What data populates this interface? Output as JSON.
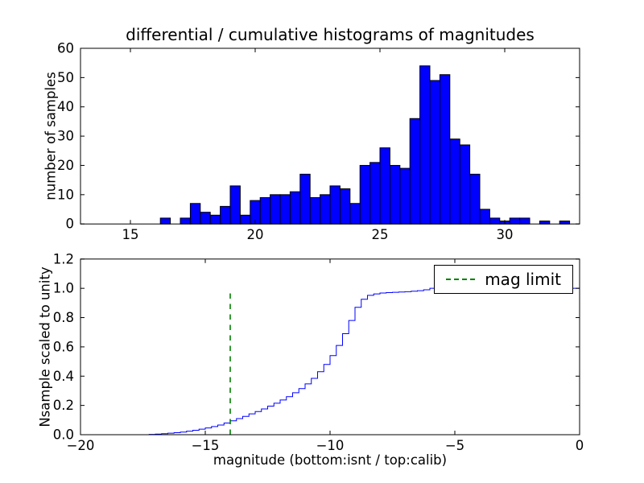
{
  "title": "differential / cumulative histograms of magnitudes",
  "colors": {
    "series_blue": "#0000ff",
    "mag_limit_green": "#008000",
    "axes_frame": "#000000",
    "background": "#ffffff"
  },
  "chart_data": [
    {
      "type": "bar",
      "name": "differential-histogram",
      "ylabel": "number of samples",
      "xlim": [
        13,
        33
      ],
      "ylim": [
        0,
        60
      ],
      "xticks": [
        15,
        20,
        25,
        30
      ],
      "xtick_labels": [
        "15",
        "20",
        "25",
        "30"
      ],
      "yticks": [
        0,
        10,
        20,
        30,
        40,
        50,
        60
      ],
      "ytick_labels": [
        "0",
        "10",
        "20",
        "30",
        "40",
        "50",
        "60"
      ],
      "grid": false,
      "bin_start": 16.2,
      "bin_width": 0.4,
      "values": [
        2,
        0,
        2,
        7,
        4,
        3,
        6,
        13,
        3,
        8,
        9,
        10,
        10,
        11,
        17,
        9,
        10,
        13,
        12,
        7,
        20,
        21,
        26,
        20,
        19,
        36,
        54,
        49,
        51,
        29,
        27,
        17,
        5,
        2,
        1,
        2,
        2,
        0,
        1,
        0,
        1,
        0
      ],
      "bar_color": "#0000ff",
      "bar_edge_color": "#000000"
    },
    {
      "type": "line",
      "name": "cumulative-histogram",
      "ylabel": "Nsample scaled to unity",
      "xlabel": "magnitude (bottom:isnt / top:calib)",
      "xlim": [
        -20,
        0
      ],
      "ylim": [
        0,
        1.2
      ],
      "xticks": [
        -20,
        -15,
        -10,
        -5,
        0
      ],
      "xtick_labels": [
        "−20",
        "−15",
        "−10",
        "−5",
        "0"
      ],
      "yticks": [
        0,
        0.2,
        0.4,
        0.6,
        0.8,
        1.0,
        1.2
      ],
      "ytick_labels": [
        "0.0",
        "0.2",
        "0.4",
        "0.6",
        "0.8",
        "1.0",
        "1.2"
      ],
      "grid": false,
      "line_color": "#0000ff",
      "steps": [
        [
          -17.5,
          0
        ],
        [
          -17.25,
          0.002
        ],
        [
          -17.0,
          0.004
        ],
        [
          -16.75,
          0.007
        ],
        [
          -16.5,
          0.01
        ],
        [
          -16.25,
          0.014
        ],
        [
          -16.0,
          0.018
        ],
        [
          -15.75,
          0.024
        ],
        [
          -15.5,
          0.03
        ],
        [
          -15.25,
          0.038
        ],
        [
          -15.0,
          0.046
        ],
        [
          -14.75,
          0.056
        ],
        [
          -14.5,
          0.066
        ],
        [
          -14.25,
          0.08
        ],
        [
          -14.0,
          0.095
        ],
        [
          -13.75,
          0.11
        ],
        [
          -13.5,
          0.125
        ],
        [
          -13.25,
          0.142
        ],
        [
          -13.0,
          0.158
        ],
        [
          -12.75,
          0.176
        ],
        [
          -12.5,
          0.195
        ],
        [
          -12.25,
          0.215
        ],
        [
          -12.0,
          0.237
        ],
        [
          -11.75,
          0.26
        ],
        [
          -11.5,
          0.287
        ],
        [
          -11.25,
          0.315
        ],
        [
          -11.0,
          0.347
        ],
        [
          -10.75,
          0.385
        ],
        [
          -10.5,
          0.43
        ],
        [
          -10.25,
          0.48
        ],
        [
          -10.0,
          0.54
        ],
        [
          -9.75,
          0.61
        ],
        [
          -9.5,
          0.69
        ],
        [
          -9.25,
          0.78
        ],
        [
          -9.0,
          0.87
        ],
        [
          -8.75,
          0.925
        ],
        [
          -8.5,
          0.952
        ],
        [
          -8.25,
          0.962
        ],
        [
          -8.0,
          0.968
        ],
        [
          -7.75,
          0.971
        ],
        [
          -7.5,
          0.973
        ],
        [
          -7.25,
          0.975
        ],
        [
          -7.0,
          0.977
        ],
        [
          -6.75,
          0.98
        ],
        [
          -6.5,
          0.984
        ],
        [
          -6.25,
          0.99
        ],
        [
          -6.0,
          1.0
        ],
        [
          0,
          1.0
        ]
      ],
      "vline": {
        "x": -14,
        "y0": 0,
        "y1": 0.97,
        "color": "#008000",
        "style": "dashed",
        "label": "mag limit"
      },
      "legend_loc": "upper right"
    }
  ]
}
